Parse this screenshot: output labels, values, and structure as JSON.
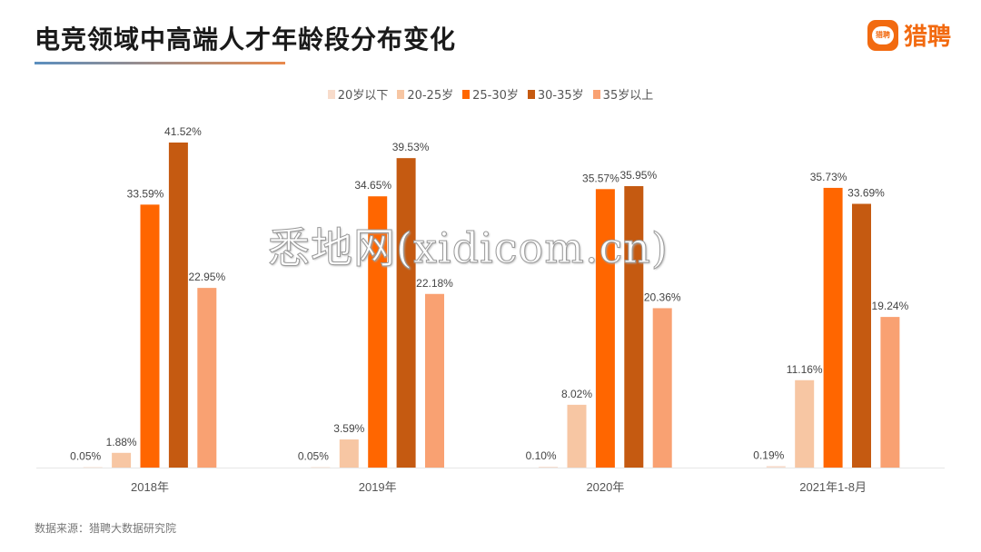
{
  "title": "电竞领域中高端人才年龄段分布变化",
  "logo": {
    "text": "猎聘",
    "inner": "猎聘",
    "color": "#f26a10"
  },
  "source": "数据来源：猎聘大数据研究院",
  "watermark": "悉地网(xidicom.cn)",
  "chart_data": {
    "type": "bar",
    "categories": [
      "2018年",
      "2019年",
      "2020年",
      "2021年1-8月"
    ],
    "legend_position": "top",
    "grid": false,
    "ylim": [
      0,
      45
    ],
    "series": [
      {
        "name": "20岁以下",
        "color": "#f8dccb",
        "values": [
          0.05,
          0.05,
          0.1,
          0.19
        ],
        "labels": [
          "0.05%",
          "0.05%",
          "0.10%",
          "0.19%"
        ]
      },
      {
        "name": "20-25岁",
        "color": "#f7c6a3",
        "values": [
          1.88,
          3.59,
          8.02,
          11.16
        ],
        "labels": [
          "1.88%",
          "3.59%",
          "8.02%",
          "11.16%"
        ]
      },
      {
        "name": "25-30岁",
        "color": "#ff6600",
        "values": [
          33.59,
          34.65,
          35.57,
          35.73
        ],
        "labels": [
          "33.59%",
          "34.65%",
          "35.57%",
          "35.73%"
        ]
      },
      {
        "name": "30-35岁",
        "color": "#c55a11",
        "values": [
          41.52,
          39.53,
          35.95,
          33.69
        ],
        "labels": [
          "41.52%",
          "39.53%",
          "35.95%",
          "33.69%"
        ]
      },
      {
        "name": "35岁以上",
        "color": "#f9a172",
        "values": [
          22.95,
          22.18,
          20.36,
          19.24
        ],
        "labels": [
          "22.95%",
          "22.18%",
          "20.36%",
          "19.24%"
        ]
      }
    ]
  }
}
